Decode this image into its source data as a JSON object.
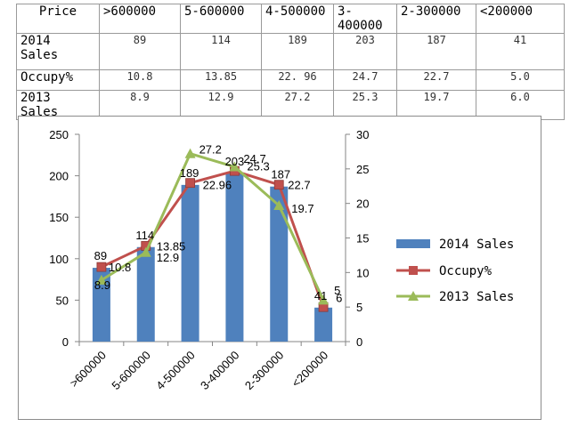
{
  "table": {
    "header": [
      "Price",
      ">600000",
      "5-600000",
      "4-500000",
      "3-400000",
      "2-300000",
      "<200000"
    ],
    "rows": [
      {
        "label": "2014 Sales",
        "values": [
          "89",
          "114",
          "189",
          "203",
          "187",
          "41"
        ]
      },
      {
        "label": "Occupy%",
        "values": [
          "10.8",
          "13.85",
          "22. 96",
          "24.7",
          "22.7",
          "5.0"
        ]
      },
      {
        "label": "2013 Sales",
        "values": [
          "8.9",
          "12.9",
          "27.2",
          "25.3",
          "19.7",
          "6.0"
        ]
      }
    ]
  },
  "chart_data": {
    "type": "bar",
    "categories": [
      ">600000",
      "5-600000",
      "4-500000",
      "3-400000",
      "2-300000",
      "<200000"
    ],
    "series": [
      {
        "name": "2014 Sales",
        "type": "bar",
        "axis": "left",
        "color": "#4f81bd",
        "values": [
          89,
          114,
          189,
          203,
          187,
          41
        ],
        "labels": [
          "89",
          "114",
          "189",
          "203",
          "187",
          "41"
        ]
      },
      {
        "name": "Occupy%",
        "type": "line",
        "axis": "right",
        "color": "#c0504d",
        "marker": "square",
        "values": [
          10.8,
          13.85,
          22.96,
          24.7,
          22.7,
          5.0
        ],
        "labels": [
          "10.8",
          "13.85",
          "22.96",
          "24.7",
          "22.7",
          "5"
        ]
      },
      {
        "name": "2013 Sales",
        "type": "line",
        "axis": "right",
        "color": "#9bbb59",
        "marker": "triangle",
        "values": [
          8.9,
          12.9,
          27.2,
          25.3,
          19.7,
          6.0
        ],
        "labels": [
          "8.9",
          "12.9",
          "27.2",
          "25.3",
          "19.7",
          "6"
        ]
      }
    ],
    "y_left": {
      "min": 0,
      "max": 250,
      "ticks": [
        "0",
        "50",
        "100",
        "150",
        "200",
        "250"
      ]
    },
    "y_right": {
      "min": 0,
      "max": 30,
      "ticks": [
        "0",
        "5",
        "10",
        "15",
        "20",
        "25",
        "30"
      ]
    },
    "legend_position": "right",
    "grid": false
  }
}
